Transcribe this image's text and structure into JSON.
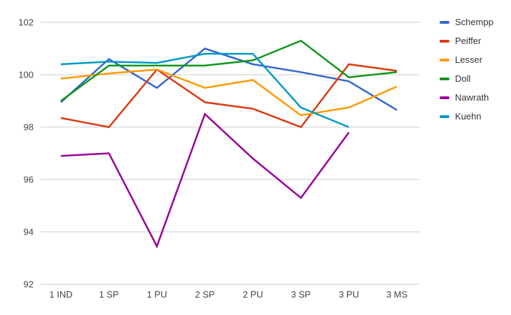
{
  "chart_data": {
    "type": "line",
    "title": "",
    "xlabel": "",
    "ylabel": "",
    "categories": [
      "1 IND",
      "1 SP",
      "1 PU",
      "2 SP",
      "2 PU",
      "3 SP",
      "3 PU",
      "3 MS"
    ],
    "series": [
      {
        "name": "Schempp",
        "color": "#3366cc",
        "values": [
          98.95,
          100.6,
          99.5,
          101.0,
          100.4,
          100.1,
          99.75,
          98.65
        ]
      },
      {
        "name": "Peiffer",
        "color": "#dc3912",
        "values": [
          98.35,
          98.0,
          100.2,
          98.95,
          98.7,
          98.0,
          100.4,
          100.15
        ]
      },
      {
        "name": "Lesser",
        "color": "#ff9900",
        "values": [
          99.85,
          100.05,
          100.2,
          99.5,
          99.8,
          98.45,
          98.75,
          99.55
        ]
      },
      {
        "name": "Doll",
        "color": "#109618",
        "values": [
          99.0,
          100.35,
          100.35,
          100.35,
          100.55,
          101.3,
          99.9,
          100.1
        ]
      },
      {
        "name": "Nawrath",
        "color": "#990099",
        "values": [
          96.9,
          97.0,
          93.45,
          98.5,
          96.8,
          95.3,
          97.8,
          null
        ]
      },
      {
        "name": "Kuehn",
        "color": "#0099c6",
        "values": [
          100.4,
          100.5,
          100.45,
          100.8,
          100.8,
          98.75,
          98.0,
          null
        ]
      }
    ],
    "ylim": [
      92,
      102
    ],
    "yticks": [
      92,
      94,
      96,
      98,
      100,
      102
    ],
    "grid": true,
    "legend_position": "right",
    "gridline_color": "#cccccc",
    "axis_label_color": "#444444"
  }
}
